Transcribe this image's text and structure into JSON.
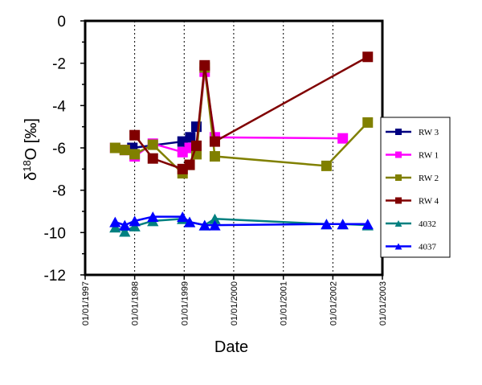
{
  "chart_data": {
    "type": "line",
    "xlabel": "Date",
    "ylabel": "δ18O [‰]",
    "ylabel_main": "δ",
    "ylabel_sup": "18",
    "ylabel_rest": "O [‰]",
    "x_ticks": [
      "01/01/1997",
      "01/01/1998",
      "01/01/1999",
      "01/01/2000",
      "01/01/2001",
      "01/01/2002",
      "01/01/2003"
    ],
    "x_range": [
      "1997-01-01",
      "2003-01-01"
    ],
    "y_ticks": [
      "0",
      "-2",
      "-4",
      "-6",
      "-8",
      "-10",
      "-12"
    ],
    "ylim": [
      -12,
      0
    ],
    "grid": "vertical",
    "legend": "right",
    "series": [
      {
        "name": "RW 3",
        "color": "#000080",
        "marker": "square",
        "points": [
          {
            "x": "1997-12-15",
            "y": -6.0
          },
          {
            "x": "1998-12-20",
            "y": -5.7
          },
          {
            "x": "1999-02-15",
            "y": -5.5
          },
          {
            "x": "1999-04-01",
            "y": -5.0
          }
        ]
      },
      {
        "name": "RW 1",
        "color": "#FF00FF",
        "marker": "square",
        "points": [
          {
            "x": "1997-08-10",
            "y": -6.0
          },
          {
            "x": "1997-10-20",
            "y": -6.1
          },
          {
            "x": "1998-01-01",
            "y": -6.4
          },
          {
            "x": "1998-05-15",
            "y": -5.8
          },
          {
            "x": "1998-12-20",
            "y": -6.2
          },
          {
            "x": "1999-02-10",
            "y": -6.0
          },
          {
            "x": "1999-04-01",
            "y": -6.1
          },
          {
            "x": "1999-06-01",
            "y": -2.4
          },
          {
            "x": "1999-08-15",
            "y": -5.5
          },
          {
            "x": "2002-03-15",
            "y": -5.55
          }
        ]
      },
      {
        "name": "RW 2",
        "color": "#808000",
        "marker": "square",
        "points": [
          {
            "x": "1997-08-10",
            "y": -6.0
          },
          {
            "x": "1997-10-20",
            "y": -6.1
          },
          {
            "x": "1998-01-01",
            "y": -6.3
          },
          {
            "x": "1998-05-15",
            "y": -5.85
          },
          {
            "x": "1998-12-20",
            "y": -7.2
          },
          {
            "x": "1999-02-10",
            "y": -6.8
          },
          {
            "x": "1999-04-01",
            "y": -6.3
          },
          {
            "x": "1999-06-01",
            "y": -2.2
          },
          {
            "x": "1999-08-15",
            "y": -6.4
          },
          {
            "x": "2001-11-15",
            "y": -6.85
          },
          {
            "x": "2002-09-15",
            "y": -4.8
          }
        ]
      },
      {
        "name": "RW 4",
        "color": "#800000",
        "marker": "square",
        "points": [
          {
            "x": "1998-01-01",
            "y": -5.4
          },
          {
            "x": "1998-05-15",
            "y": -6.5
          },
          {
            "x": "1998-12-20",
            "y": -7.0
          },
          {
            "x": "1999-02-10",
            "y": -6.8
          },
          {
            "x": "1999-04-01",
            "y": -5.9
          },
          {
            "x": "1999-06-01",
            "y": -2.1
          },
          {
            "x": "1999-08-15",
            "y": -5.7
          },
          {
            "x": "2002-09-15",
            "y": -1.7
          }
        ]
      },
      {
        "name": "4032",
        "color": "#008080",
        "marker": "triangle",
        "points": [
          {
            "x": "1997-08-10",
            "y": -9.75
          },
          {
            "x": "1997-10-20",
            "y": -9.95
          },
          {
            "x": "1998-01-01",
            "y": -9.7
          },
          {
            "x": "1998-05-15",
            "y": -9.45
          },
          {
            "x": "1998-12-20",
            "y": -9.35
          },
          {
            "x": "1999-02-10",
            "y": -9.5
          },
          {
            "x": "1999-06-01",
            "y": -9.65
          },
          {
            "x": "1999-08-15",
            "y": -9.35
          },
          {
            "x": "2001-11-15",
            "y": -9.6
          },
          {
            "x": "2002-03-15",
            "y": -9.6
          },
          {
            "x": "2002-09-15",
            "y": -9.65
          }
        ]
      },
      {
        "name": "4037",
        "color": "#0000FF",
        "marker": "triangle",
        "points": [
          {
            "x": "1997-08-10",
            "y": -9.5
          },
          {
            "x": "1997-10-20",
            "y": -9.65
          },
          {
            "x": "1998-01-01",
            "y": -9.45
          },
          {
            "x": "1998-05-15",
            "y": -9.25
          },
          {
            "x": "1998-12-20",
            "y": -9.25
          },
          {
            "x": "1999-02-10",
            "y": -9.5
          },
          {
            "x": "1999-06-01",
            "y": -9.65
          },
          {
            "x": "1999-08-15",
            "y": -9.65
          },
          {
            "x": "2001-11-15",
            "y": -9.6
          },
          {
            "x": "2002-03-15",
            "y": -9.6
          },
          {
            "x": "2002-09-15",
            "y": -9.6
          }
        ]
      }
    ]
  }
}
